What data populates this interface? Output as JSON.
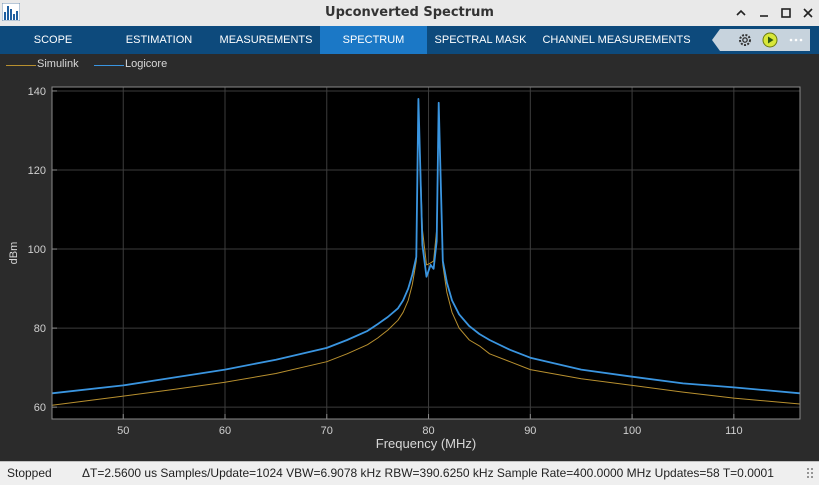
{
  "window": {
    "title": "Upconverted Spectrum"
  },
  "tabs": [
    {
      "label": "SCOPE",
      "active": false
    },
    {
      "label": "ESTIMATION",
      "active": false
    },
    {
      "label": "MEASUREMENTS",
      "active": false
    },
    {
      "label": "SPECTRUM",
      "active": true
    },
    {
      "label": "SPECTRAL MASK",
      "active": false
    },
    {
      "label": "CHANNEL MEASUREMENTS",
      "active": false
    }
  ],
  "toolbar_icons": [
    "settings-icon",
    "run-icon",
    "more-icon"
  ],
  "legend": [
    {
      "label": "Simulink",
      "color": "#b8902f"
    },
    {
      "label": "Logicore",
      "color": "#3a95e0"
    }
  ],
  "chart_data": {
    "type": "line",
    "title": "",
    "xlabel": "Frequency (MHz)",
    "ylabel": "dBm",
    "xlim": [
      43,
      116.5
    ],
    "ylim": [
      57,
      141
    ],
    "xticks": [
      50,
      60,
      70,
      80,
      90,
      100,
      110
    ],
    "yticks": [
      60,
      80,
      100,
      120,
      140
    ],
    "grid": true,
    "series": [
      {
        "name": "Simulink",
        "color": "#b8902f",
        "x": [
          43,
          50,
          55,
          60,
          65,
          70,
          72,
          74,
          75,
          76,
          77,
          77.5,
          78,
          78.4,
          78.8,
          79.0,
          79.4,
          79.8,
          80.2,
          80.5,
          80.8,
          81.0,
          81.4,
          81.8,
          82.3,
          83,
          84,
          85,
          86,
          88,
          90,
          95,
          100,
          105,
          110,
          116.5
        ],
        "y": [
          60.5,
          62.8,
          64.5,
          66.3,
          68.5,
          71.5,
          73.5,
          75.8,
          77.5,
          79.5,
          82,
          84,
          87,
          91,
          97,
          137,
          105,
          96,
          96.5,
          97,
          105,
          136,
          96,
          89,
          84,
          80,
          77,
          75.5,
          73.5,
          71.5,
          69.5,
          67.2,
          65.5,
          63.8,
          62.3,
          60.8
        ]
      },
      {
        "name": "Logicore",
        "color": "#3a95e0",
        "x": [
          43,
          50,
          55,
          60,
          65,
          70,
          72,
          74,
          75,
          76,
          77,
          77.5,
          78,
          78.4,
          78.8,
          79.0,
          79.4,
          79.8,
          80.2,
          80.5,
          80.8,
          81.0,
          81.4,
          81.8,
          82.3,
          83,
          84,
          85,
          86,
          88,
          90,
          95,
          100,
          105,
          110,
          116.5
        ],
        "y": [
          63.5,
          65.5,
          67.5,
          69.5,
          72,
          75,
          77,
          79.3,
          81,
          82.8,
          85,
          87,
          90,
          93.5,
          98,
          138,
          101,
          93,
          96,
          95,
          102,
          137,
          97,
          91.5,
          87,
          83.5,
          80.5,
          78.5,
          77,
          74.5,
          72.5,
          69.5,
          67.7,
          66,
          65,
          63.5
        ]
      }
    ]
  },
  "status": {
    "state": "Stopped",
    "measurements": "ΔT=2.5600 us  Samples/Update=1024  VBW=6.9078 kHz  RBW=390.6250 kHz  Sample Rate=400.0000 MHz  Updates=58  T=0.0001"
  }
}
